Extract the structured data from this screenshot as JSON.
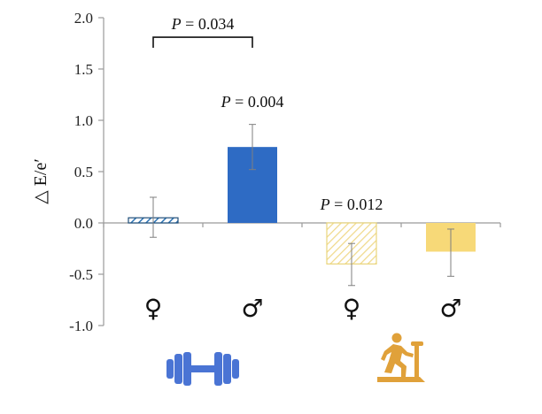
{
  "chart_data": {
    "type": "bar",
    "title": "",
    "xlabel": "",
    "ylabel": "△ E/e′",
    "ylim": [
      -1.0,
      2.0
    ],
    "yticks": [
      2.0,
      1.5,
      1.0,
      0.5,
      0.0,
      -0.5,
      -1.0
    ],
    "ytick_labels": [
      "2.0",
      "1.5",
      "1.0",
      "0.5",
      "0.0",
      "-0.5",
      "-1.0"
    ],
    "grid": false,
    "legend": "none",
    "categories": [
      "♀",
      "♂",
      "♀",
      "♂"
    ],
    "values": [
      0.05,
      0.74,
      -0.4,
      -0.28
    ],
    "error_low": [
      -0.14,
      0.52,
      -0.61,
      -0.52
    ],
    "error_high": [
      0.25,
      0.96,
      -0.2,
      -0.06
    ],
    "bar_styles": [
      {
        "fill": "hatched",
        "color": "#2E75B6",
        "stroke": "#1F4E79"
      },
      {
        "fill": "solid",
        "color": "#2E6BC4",
        "stroke": "#2E6BC4"
      },
      {
        "fill": "hatched",
        "color": "#F3DE8A",
        "stroke": "#EAD57C"
      },
      {
        "fill": "solid",
        "color": "#F7D978",
        "stroke": "#F7D978"
      }
    ],
    "annotations": [
      {
        "text": "P = 0.034",
        "bracket": [
          0,
          1
        ],
        "y": 1.81
      },
      {
        "text": "P = 0.004",
        "bar": 1,
        "y": 1.13
      },
      {
        "text": "P = 0.012",
        "bar": 2,
        "y": 0.13
      }
    ],
    "group_icons": [
      {
        "icon": "dumbbell-icon",
        "bars": [
          0,
          1
        ],
        "color": "#4A74D4"
      },
      {
        "icon": "treadmill-runner-icon",
        "bars": [
          2,
          3
        ],
        "color": "#E0A13A"
      }
    ]
  }
}
